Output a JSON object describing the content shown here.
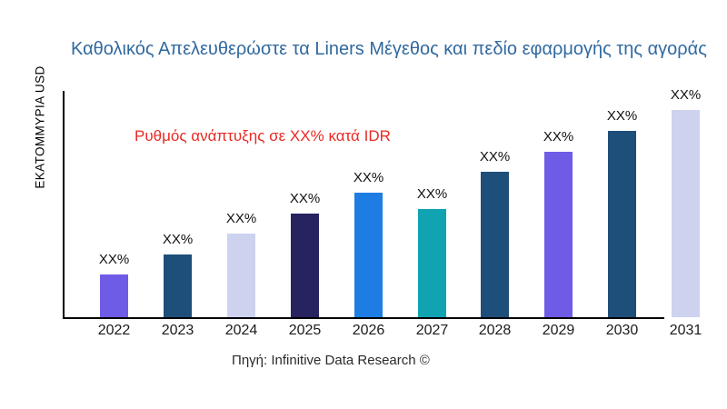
{
  "page": {
    "title": "Καθολικός Απελευθερώστε τα Liners Μέγεθος και πεδίο εφαρμογής της αγοράς",
    "y_axis_label": "ΕΚΑΤΟΜΜΥΡΙΑ USD",
    "annotation": "Ρυθμός ανάπτυξης σε XX% κατά IDR",
    "source": "Πηγή: Infinitive Data Research ©"
  },
  "colors": {
    "title": "#31699f",
    "annotation_red": "#e92a25",
    "axis": "#000000",
    "purple": "#6e5ce6",
    "dark_steel_blue": "#1e4e7a",
    "light_lavender": "#cdd2ef",
    "dark_indigo": "#272260",
    "azure": "#1e7de2",
    "teal": "#10a3b2"
  },
  "chart_data": {
    "type": "bar",
    "title": "Καθολικός Απελευθερώστε τα Liners Μέγεθος και πεδίο εφαρμογής της αγοράς",
    "xlabel": "",
    "ylabel": "ΕΚΑΤΟΜΜΥΡΙΑ USD",
    "categories": [
      "2022",
      "2023",
      "2024",
      "2025",
      "2026",
      "2027",
      "2028",
      "2029",
      "2030",
      "2031"
    ],
    "values": [
      47,
      69,
      92,
      114,
      137,
      119,
      160,
      182,
      205,
      228
    ],
    "values_note": "axis has no numeric ticks; every bar is labeled XX%, values are relative bar heights in px",
    "value_labels": [
      "XX%",
      "XX%",
      "XX%",
      "XX%",
      "XX%",
      "XX%",
      "XX%",
      "XX%",
      "XX%",
      "XX%"
    ],
    "bar_colors": [
      "#6e5ce6",
      "#1e4e7a",
      "#cdd2ef",
      "#272260",
      "#1e7de2",
      "#10a3b2",
      "#1e4e7a",
      "#6e5ce6",
      "#1e4e7a",
      "#cdd2ef"
    ],
    "annotation": "Ρυθμός ανάπτυξης σε XX% κατά IDR",
    "grid": false,
    "legend": false
  }
}
